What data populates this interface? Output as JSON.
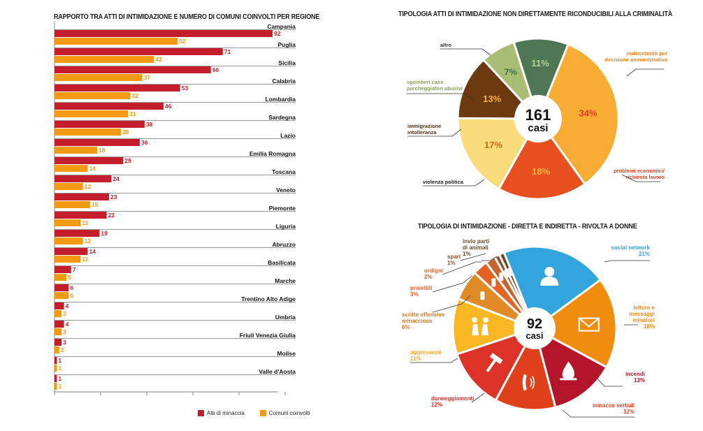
{
  "bar_chart_title": "RAPPORTO TRA ATTI DI INTIMIDAZIONE E NUMERO DI COMUNI COINVOLTI PER REGIONE",
  "pie1_title": "TIPOLOGIA ATTI DI INTIMIDAZIONE NON DIRETTAMENTE RICONDUCIBILI ALLA CRIMINALITÀ",
  "pie2_title": "TIPOLOGIA DI INTIMIDAZIONE  - DIRETTA E INDIRETTA - RIVOLTA A DONNE",
  "legend": {
    "series1": "Atti di minaccia",
    "series2": "Comuni coinvolti"
  },
  "colors": {
    "series1": "#c41d2b",
    "series2": "#f39a12"
  },
  "chart_data": [
    {
      "type": "bar",
      "orientation": "horizontal",
      "title": "RAPPORTO TRA ATTI DI INTIMIDAZIONE E NUMERO DI COMUNI COINVOLTI PER REGIONE",
      "categories": [
        "Campania",
        "Puglia",
        "Sicilia",
        "Calabria",
        "Lombardia",
        "Sardegna",
        "Lazio",
        "Emilia Romagna",
        "Toscana",
        "Veneto",
        "Piemonte",
        "Liguria",
        "Abruzzo",
        "Basilicata",
        "Marche",
        "Trentino Alto Adige",
        "Umbria",
        "Friuli Venezia Giulia",
        "Molise",
        "Valle d'Aosta"
      ],
      "series": [
        {
          "name": "Atti di minaccia",
          "color": "#c41d2b",
          "values": [
            92,
            71,
            66,
            53,
            46,
            38,
            36,
            29,
            24,
            23,
            22,
            19,
            14,
            7,
            6,
            4,
            4,
            3,
            1,
            1
          ]
        },
        {
          "name": "Comuni coinvolti",
          "color": "#f39a12",
          "values": [
            52,
            42,
            37,
            32,
            31,
            28,
            18,
            14,
            12,
            15,
            11,
            12,
            11,
            5,
            6,
            3,
            3,
            2,
            1,
            1
          ]
        }
      ],
      "xlim": [
        0,
        100
      ],
      "legend_position": "bottom-right"
    },
    {
      "type": "pie",
      "title": "TIPOLOGIA ATTI DI INTIMIDAZIONE NON DIRETTAMENTE RICONDUCIBILI ALLA CRIMINALITÀ",
      "center_value": "161",
      "center_label": "casi",
      "slices": [
        {
          "label": "malcontento per decisione amministrativa",
          "value": 34,
          "pct": "34%",
          "color": "#f7ad33"
        },
        {
          "label": "problemi economici/ richiesta lavoro",
          "value": 18,
          "pct": "18%",
          "color": "#e8511f"
        },
        {
          "label": "violenza politica",
          "value": 17,
          "pct": "17%",
          "color": "#fbdc7d"
        },
        {
          "label": "immigrazione intolleranza",
          "value": 13,
          "pct": "13%",
          "color": "#6b3a0f"
        },
        {
          "label": "sgomberi case parcheggiatori abusivi",
          "value": 7,
          "pct": "7%",
          "color": "#a9bd75"
        },
        {
          "label": "altro",
          "value": 11,
          "pct": "11%",
          "color": "#4f7755"
        }
      ]
    },
    {
      "type": "pie",
      "title": "TIPOLOGIA DI INTIMIDAZIONE  - DIRETTA E INDIRETTA - RIVOLTA A DONNE",
      "center_value": "92",
      "center_label": "casi",
      "slices": [
        {
          "label": "social network",
          "value": 21,
          "pct": "21%",
          "color": "#32a5dd",
          "icon": "user-icon"
        },
        {
          "label": "lettere e messaggi minatori",
          "value": 18,
          "pct": "18%",
          "color": "#f08d0e",
          "icon": "envelope-icon"
        },
        {
          "label": "incendi",
          "value": 13,
          "pct": "13%",
          "color": "#b3162a",
          "icon": "fire-icon"
        },
        {
          "label": "minacce verbali",
          "value": 12,
          "pct": "12%",
          "color": "#e1401d",
          "icon": "phone-icon"
        },
        {
          "label": "danneggiamenti",
          "value": 12,
          "pct": "12%",
          "color": "#dd3228",
          "icon": "hammer-icon"
        },
        {
          "label": "aggressioni",
          "value": 11,
          "pct": "11%",
          "color": "#f8b723",
          "icon": "fight-icon"
        },
        {
          "label": "scritte offensive minacciose",
          "value": 6,
          "pct": "6%",
          "color": "#e08a28",
          "icon": "spray-icon"
        },
        {
          "label": "proiettili",
          "value": 3,
          "pct": "3%",
          "color": "#e36224",
          "icon": "bullet-icon"
        },
        {
          "label": "ordigni",
          "value": 2,
          "pct": "2%",
          "color": "#c8652e",
          "icon": "bomb-icon"
        },
        {
          "label": "spari",
          "value": 1,
          "pct": "1%",
          "color": "#8a5030",
          "icon": "gun-icon"
        },
        {
          "label": "invio parti di animali",
          "value": 1,
          "pct": "1%",
          "color": "#6b4a2a",
          "icon": "bone-icon"
        }
      ]
    }
  ]
}
